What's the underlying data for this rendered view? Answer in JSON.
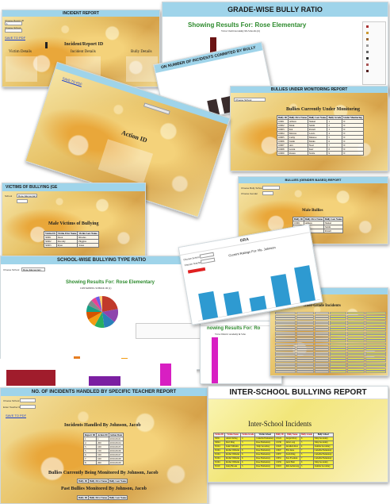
{
  "colors": {
    "header_blue": "#9fd4ea",
    "link_blue": "#1a3fd0",
    "bar_blue": "#2e9ad1",
    "bar_darkred": "#6b1414",
    "bar_dark": "#3a2c2c",
    "pink": "#d81fc2",
    "yellow_row": "#f5ef3a"
  },
  "incident_report": {
    "title": "INCIDENT REPORT",
    "save_link": "SAVE TO PDF",
    "filter_labels": [
      "Choose Report ID",
      "Choose School"
    ],
    "heading": "Incident/Report ID",
    "subheading": "Incident Details",
    "left_title": "Victim Details",
    "right_title": "Bully Details"
  },
  "grade_wise": {
    "title": "GRADE-WISE BULLY RATIO",
    "chart_title": "Showing Results For: Rose Elementary",
    "chart_sub": "Victor Cheltrl Academy Ma Schoolls (it)"
  },
  "incidents_committed": {
    "title": "ON NUMBER OF INCIDENTS COMMITED BY BULLY"
  },
  "bullies_monitoring": {
    "title": "BULLIES UNDER MONITORING REPORT",
    "heading": "Bullies Currently Under Monitoring",
    "columns": [
      "Bully ID",
      "Bully First Name",
      "Bully Last Name",
      "Bully Grade",
      "Under Monitoring"
    ],
    "rows": [
      [
        "10001",
        "Allison",
        "Shekel",
        "1",
        "N"
      ],
      [
        "10002",
        "Mark",
        "Smith",
        "2",
        "N"
      ],
      [
        "10003",
        "Kai",
        "Petrell",
        "3",
        "N"
      ],
      [
        "10004",
        "Marcus",
        "Lewis",
        "4",
        "N"
      ],
      [
        "10005",
        "Cathy",
        "Munroe",
        "5",
        "N"
      ],
      [
        "10006",
        "Justin",
        "Marks",
        "6",
        "N"
      ],
      [
        "10007",
        "Ava",
        "Noel",
        "7",
        "N"
      ],
      [
        "10008",
        "Gavin",
        "Kerr",
        "8",
        "N"
      ],
      [
        "10009",
        "Ronan",
        "Noble",
        "9",
        "N"
      ]
    ]
  },
  "action_report": {
    "heading": "Action ID",
    "save_link": "SAVE TO PDF"
  },
  "victims": {
    "title": "VICTIMS OF BULLYING (GE",
    "select_value": "Rose Elementary",
    "heading": "Male Victims of Bullying",
    "columns": [
      "Victim ID",
      "Victim First Name",
      "Victim Last Name"
    ],
    "rows": [
      [
        "50001",
        "Jason",
        "Rhodes"
      ],
      [
        "50002",
        "Dorothy",
        "Higgins"
      ],
      [
        "50003",
        "Ryan",
        "Jones"
      ]
    ]
  },
  "bullies_gender": {
    "title": "BULLIES (GENDER BASED) REPORT",
    "filter_labels": [
      "Choose Bully School",
      "Choose Gender"
    ],
    "heading": "Male Bullies",
    "columns": [
      "Bully ID",
      "Bully First Name",
      "Bully Last Name"
    ],
    "rows": [
      [
        "10001",
        "Allison",
        "Shekel"
      ],
      [
        "10002",
        "Mark",
        "Smith"
      ],
      [
        "10003",
        "Kai",
        "Petrell"
      ]
    ]
  },
  "teacher_ratings": {
    "title": "GRA",
    "chart_title": "Current Ratings For: Ms. Johnson",
    "filter_labels": [
      "Choose School",
      "Choose Teacher"
    ]
  },
  "chart_data": [
    {
      "type": "bar",
      "title": "Current Ratings For: Ms. Johnson",
      "categories": [
        "1",
        "2",
        "3",
        "4",
        "5"
      ],
      "values": [
        6,
        5,
        3,
        7,
        8
      ],
      "ylim": [
        0,
        10
      ]
    },
    {
      "type": "pie",
      "title": "Showing Results For: Rose Elementary",
      "values": [
        22,
        14,
        12,
        10,
        9,
        8,
        7,
        6,
        5,
        4,
        3
      ],
      "colors": [
        "#c0392b",
        "#8e44ad",
        "#2980b9",
        "#27ae60",
        "#f39c12",
        "#d35400",
        "#16a085",
        "#7f8c8d",
        "#e84393",
        "#6c5ce7",
        "#fdcb6e"
      ]
    }
  ],
  "school_wise": {
    "title": "SCHOOL-WISE BULLYING TYPE RATIO",
    "select_label": "Choose School",
    "select_value": "Rose Elementary",
    "chart_title": "Showing Results For: Rose Elementary",
    "chart_sub": "CONTAINING SCHOOL ID (1)"
  },
  "inter_grade": {
    "title": "Inter-Grade Incidents",
    "row_count": 22
  },
  "pink_chart": {
    "title": "nowing Results For: Ro",
    "sub": "Victor District Academy & Scho"
  },
  "teacher_report": {
    "title": "NO. OF INCIDENTS HANDLED BY SPECIFIC TEACHER REPORT",
    "filter_labels": [
      "Choose School",
      "Enter Teacher ID"
    ],
    "save_link": "SAVE TO PDF",
    "heading": "Incidents Handled By Johnson, Jacob",
    "columns": [
      "Report ID",
      "Action ID",
      "Action Date"
    ],
    "rows": [
      [
        "1",
        "1",
        "2016-09-01"
      ],
      [
        "4",
        "200",
        "2016-09-04"
      ],
      [
        "5",
        "100",
        "2016-09-05"
      ],
      [
        "5",
        "150",
        "2016-09-06"
      ],
      [
        "6",
        "100",
        "2016-09-07"
      ],
      [
        "7",
        "100",
        "2016-09-08"
      ],
      [
        "8",
        "200",
        "2016-09-09"
      ]
    ],
    "heading2": "Bullies Currently Being Monitored By Johnson, Jacob",
    "mini_columns": [
      "Bully ID",
      "Bully First Name",
      "Bully Last Name"
    ],
    "heading3": "Past Bullies Monitored By Johnson, Jacob"
  },
  "inter_school": {
    "title": "INTER-SCHOOL BULLYING REPORT",
    "heading": "Inter-School Incidents",
    "columns": [
      "Victim ID",
      "Victim Name",
      "Victim Grade",
      "Victim School",
      "Bully ID",
      "Bully Name",
      "Bully Grade",
      "Bully School"
    ],
    "rows": [
      [
        "50021",
        "Adam Verling",
        "4",
        "Camellia Elementary",
        "10124",
        "Abigail Perry",
        "6",
        "Tulip Secondary"
      ],
      [
        "50044",
        "Devi Ding",
        "3",
        "Rose Elementary",
        "10136",
        "Allie Long",
        "5",
        "Tulip Secondary"
      ],
      [
        "50124",
        "Jaden Williams",
        "7",
        "Tulip Secondary",
        "10220",
        "Abraham Root",
        "4",
        "Jasmine Secondary"
      ],
      [
        "50104",
        "Rachel Williams",
        "6",
        "Rose Elementary",
        "10047",
        "Ella Janse",
        "7",
        "Camellia Elementary"
      ],
      [
        "50104",
        "Rachel Williams",
        "6",
        "Rose Elementary",
        "10037",
        "Sarah Ding",
        "5",
        "Camellia Elementary"
      ],
      [
        "50104",
        "Rachel Williams",
        "6",
        "Rose Elementary",
        "10031",
        "Sara Everman",
        "7",
        "Camellia Elementary"
      ],
      [
        "50104",
        "Rachel Williams",
        "6",
        "Rose Elementary",
        "10259",
        "Ariel Hunt",
        "6",
        "Tulip Secondary"
      ],
      [
        "50119",
        "Jenny Brooks",
        "5",
        "Rose Elementary",
        "10218",
        "Kim Armstrong",
        "5",
        "Jasmine Secondary"
      ]
    ]
  }
}
